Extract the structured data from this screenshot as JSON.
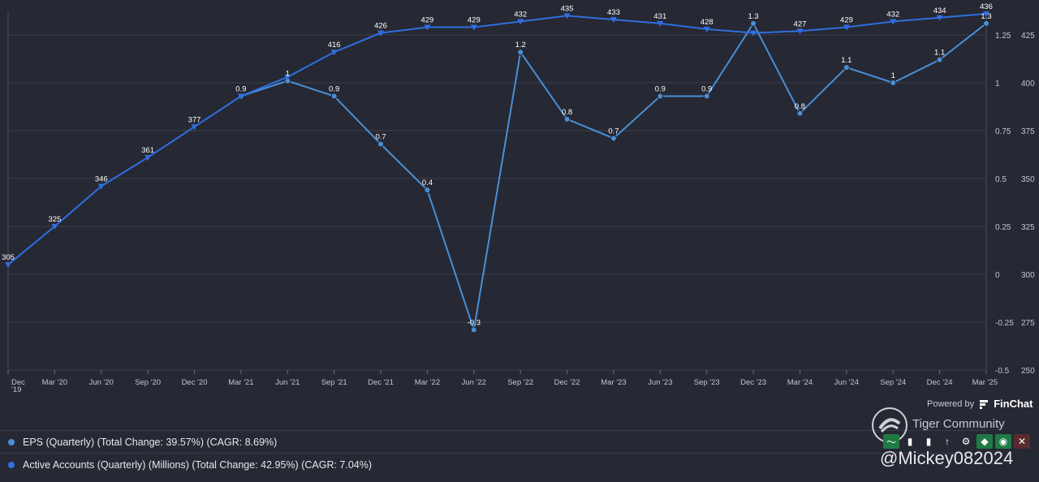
{
  "chart_data": {
    "type": "line",
    "x": [
      "Dec '19",
      "Mar '20",
      "Jun '20",
      "Sep '20",
      "Dec '20",
      "Mar '21",
      "Jun '21",
      "Sep '21",
      "Dec '21",
      "Mar '22",
      "Jun '22",
      "Sep '22",
      "Dec '22",
      "Mar '23",
      "Jun '23",
      "Sep '23",
      "Dec '23",
      "Mar '24",
      "Jun '24",
      "Sep '24",
      "Dec '24",
      "Mar '25"
    ],
    "x_ticks": [
      "Dec\n'19",
      "Mar '20",
      "Jun '20",
      "Sep '20",
      "Dec '20",
      "Mar '21",
      "Jun '21",
      "Sep '21",
      "Dec '21",
      "Mar '22",
      "Jun '22",
      "Sep '22",
      "Dec '22",
      "Mar '23",
      "Jun '23",
      "Sep '23",
      "Dec '23",
      "Mar '24",
      "Jun '24",
      "Sep '24",
      "Dec '24",
      "Mar '25"
    ],
    "series": [
      {
        "name": "EPS (Quarterly) (Total Change: 39.57%) (CAGR: 8.69%)",
        "axis": "left",
        "color": "#4a8fd6",
        "marker": "circle",
        "values": [
          null,
          null,
          null,
          null,
          null,
          0.93,
          1.01,
          0.93,
          0.68,
          0.44,
          -0.29,
          1.16,
          0.81,
          0.71,
          0.93,
          0.93,
          1.31,
          0.84,
          1.08,
          1.0,
          1.12,
          1.31
        ],
        "labels": [
          null,
          null,
          null,
          null,
          null,
          "0.9",
          "1",
          "0.9",
          "0.7",
          "0.4",
          "-0.3",
          "1.2",
          "0.8",
          "0.7",
          "0.9",
          "0.9",
          "1.3",
          "0.8",
          "1.1",
          "1",
          "1.1",
          "1.3"
        ]
      },
      {
        "name": "Active Accounts (Quarterly) (Millions) (Total Change: 42.95%) (CAGR: 7.04%)",
        "axis": "right",
        "color": "#2f6fe0",
        "marker": "triangle-down",
        "values": [
          305,
          325,
          346,
          361,
          377,
          393,
          403,
          416,
          426,
          429,
          429,
          432,
          435,
          433,
          431,
          428,
          426,
          427,
          429,
          432,
          434,
          436
        ],
        "labels": [
          "305",
          "325",
          "346",
          "361",
          "377",
          null,
          null,
          "416",
          "426",
          "429",
          "429",
          "432",
          "435",
          "433",
          "431",
          "428",
          null,
          "427",
          "429",
          "432",
          "434",
          "436"
        ]
      }
    ],
    "y_left": {
      "ticks": [
        "1.25",
        "1",
        "0.75",
        "0.5",
        "0.25",
        "0",
        "-0.25",
        "-0.5"
      ],
      "range": [
        -0.5,
        1.25
      ]
    },
    "y_right": {
      "ticks": [
        "425",
        "400",
        "375",
        "350",
        "325",
        "300",
        "275",
        "250"
      ],
      "range": [
        250,
        425
      ]
    },
    "grid": true
  },
  "legend": [
    {
      "label": "EPS (Quarterly) (Total Change: 39.57%) (CAGR: 8.69%)",
      "color": "#4a8fd6"
    },
    {
      "label": "Active Accounts (Quarterly) (Millions) (Total Change: 42.95%) (CAGR: 7.04%)",
      "color": "#2f6fe0"
    }
  ],
  "powered_by": {
    "prefix": "Powered by",
    "brand": "FinChat"
  },
  "watermark": {
    "community": "Tiger Community",
    "handle": "@Mickey082024"
  },
  "toolbar": {
    "icons": [
      "trend-icon",
      "bar-icon",
      "bar-icon",
      "sort-icon",
      "gear-icon",
      "tag-icon",
      "eye-icon",
      "close-icon"
    ]
  }
}
